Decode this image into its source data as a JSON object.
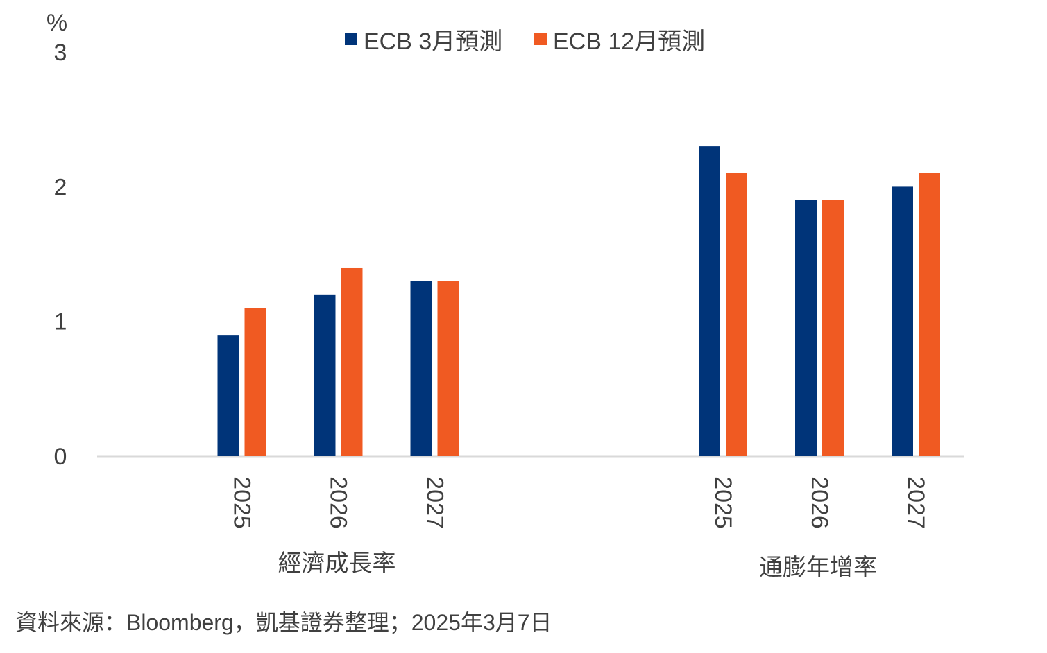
{
  "chart_data": {
    "type": "bar",
    "unit_label": "%",
    "ylim": [
      0,
      3
    ],
    "yticks": [
      "0",
      "1",
      "2",
      "3"
    ],
    "grid": false,
    "legend_position": "top-center",
    "colors": {
      "series_march": "#003479",
      "series_december": "#F05A22",
      "axis_line": "#D9D9D9"
    },
    "series": [
      {
        "name": "ECB 3月預測"
      },
      {
        "name": "ECB 12月預測"
      }
    ],
    "groups": [
      {
        "label": "經濟成長率",
        "categories": [
          "2025",
          "2026",
          "2027"
        ],
        "values": [
          [
            0.9,
            1.1
          ],
          [
            1.2,
            1.4
          ],
          [
            1.3,
            1.3
          ]
        ]
      },
      {
        "label": "通膨年增率",
        "categories": [
          "2025",
          "2026",
          "2027"
        ],
        "values": [
          [
            2.3,
            2.1
          ],
          [
            1.9,
            1.9
          ],
          [
            2.0,
            2.1
          ]
        ]
      }
    ]
  },
  "footer": {
    "source": "資料來源：Bloomberg，凱基證券整理；2025年3月7日"
  }
}
